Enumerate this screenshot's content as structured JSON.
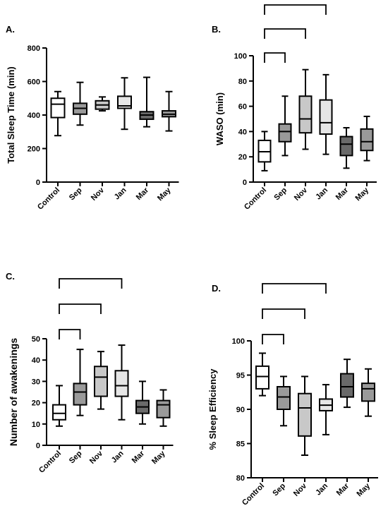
{
  "chart_data": [
    {
      "panel": "A.",
      "type": "boxplot",
      "ylabel": "Total Sleep Time (min)",
      "ylim": [
        0,
        800
      ],
      "yticks": [
        0,
        200,
        400,
        600,
        800
      ],
      "categories": [
        "Control",
        "Sep",
        "Nov",
        "Jan",
        "Mar",
        "May"
      ],
      "fills": [
        "#ffffff",
        "#9a9a9a",
        "#c8c8c8",
        "#e6e6e6",
        "#6a6a6a",
        "#9a9a9a"
      ],
      "boxes": [
        {
          "min": 277,
          "q1": 385,
          "median": 465,
          "q3": 500,
          "max": 540
        },
        {
          "min": 340,
          "q1": 405,
          "median": 440,
          "q3": 470,
          "max": 595
        },
        {
          "min": 425,
          "q1": 435,
          "median": 460,
          "q3": 485,
          "max": 508
        },
        {
          "min": 315,
          "q1": 440,
          "median": 455,
          "q3": 512,
          "max": 622
        },
        {
          "min": 330,
          "q1": 375,
          "median": 400,
          "q3": 420,
          "max": 625
        },
        {
          "min": 305,
          "q1": 390,
          "median": 405,
          "q3": 425,
          "max": 540
        }
      ],
      "brackets": []
    },
    {
      "panel": "B.",
      "type": "boxplot",
      "ylabel": "WASO (min)",
      "ylim": [
        0,
        100
      ],
      "yticks": [
        0,
        20,
        40,
        60,
        80,
        100
      ],
      "categories": [
        "Control",
        "Sep",
        "Nov",
        "Jan",
        "Mar",
        "May"
      ],
      "fills": [
        "#ffffff",
        "#9a9a9a",
        "#c8c8c8",
        "#e6e6e6",
        "#6a6a6a",
        "#9a9a9a"
      ],
      "boxes": [
        {
          "min": 9,
          "q1": 16,
          "median": 24,
          "q3": 33,
          "max": 40
        },
        {
          "min": 21,
          "q1": 32,
          "median": 40,
          "q3": 46,
          "max": 68
        },
        {
          "min": 26,
          "q1": 39,
          "median": 50,
          "q3": 68,
          "max": 89
        },
        {
          "min": 22,
          "q1": 38,
          "median": 47,
          "q3": 65,
          "max": 85
        },
        {
          "min": 11,
          "q1": 21,
          "median": 30,
          "q3": 36,
          "max": 43
        },
        {
          "min": 17,
          "q1": 25,
          "median": 32,
          "q3": 42,
          "max": 52
        }
      ],
      "brackets": [
        [
          0,
          1
        ],
        [
          0,
          2
        ],
        [
          0,
          3
        ]
      ]
    },
    {
      "panel": "C.",
      "type": "boxplot",
      "ylabel": "Number of awakenings",
      "ylim": [
        0,
        50
      ],
      "yticks": [
        0,
        10,
        20,
        30,
        40,
        50
      ],
      "categories": [
        "Control",
        "Sep",
        "Nov",
        "Jan",
        "Mar",
        "May"
      ],
      "fills": [
        "#ffffff",
        "#9a9a9a",
        "#c8c8c8",
        "#e6e6e6",
        "#6a6a6a",
        "#9a9a9a"
      ],
      "boxes": [
        {
          "min": 9,
          "q1": 12,
          "median": 15,
          "q3": 19,
          "max": 28
        },
        {
          "min": 14,
          "q1": 19,
          "median": 25,
          "q3": 29,
          "max": 45
        },
        {
          "min": 17,
          "q1": 23,
          "median": 32,
          "q3": 37,
          "max": 44
        },
        {
          "min": 12,
          "q1": 23,
          "median": 28,
          "q3": 35,
          "max": 47
        },
        {
          "min": 10,
          "q1": 15,
          "median": 18,
          "q3": 21,
          "max": 30
        },
        {
          "min": 9,
          "q1": 13,
          "median": 19,
          "q3": 21,
          "max": 26
        }
      ],
      "brackets": [
        [
          0,
          1
        ],
        [
          0,
          2
        ],
        [
          0,
          3
        ]
      ]
    },
    {
      "panel": "D.",
      "type": "boxplot",
      "ylabel": "% Sleep Efficiency",
      "ylim": [
        80,
        100
      ],
      "yticks": [
        80,
        85,
        90,
        95,
        100
      ],
      "categories": [
        "Control",
        "Sep",
        "Nov",
        "Jan",
        "Mar",
        "May"
      ],
      "fills": [
        "#ffffff",
        "#9a9a9a",
        "#c8c8c8",
        "#e6e6e6",
        "#6a6a6a",
        "#9a9a9a"
      ],
      "boxes": [
        {
          "min": 92,
          "q1": 93,
          "median": 94.8,
          "q3": 96.3,
          "max": 98.2
        },
        {
          "min": 87.6,
          "q1": 90,
          "median": 91.8,
          "q3": 93.3,
          "max": 94.8
        },
        {
          "min": 83.3,
          "q1": 86.1,
          "median": 90.2,
          "q3": 92.3,
          "max": 94.8
        },
        {
          "min": 86.3,
          "q1": 89.8,
          "median": 90.6,
          "q3": 91.5,
          "max": 93.6
        },
        {
          "min": 90.3,
          "q1": 91.8,
          "median": 93.3,
          "q3": 95.2,
          "max": 97.3
        },
        {
          "min": 89,
          "q1": 91.2,
          "median": 93,
          "q3": 93.8,
          "max": 95.9
        }
      ],
      "brackets": [
        [
          0,
          1
        ],
        [
          0,
          2
        ],
        [
          0,
          3
        ]
      ]
    }
  ]
}
